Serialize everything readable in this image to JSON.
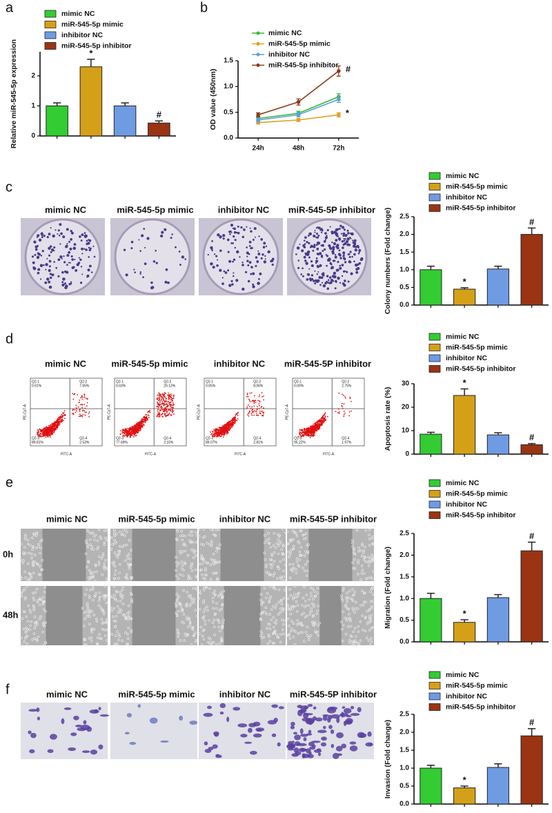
{
  "chart_data": [
    {
      "type": "bar",
      "panel_label": "a",
      "ylabel": "Relative miR-545-5p expression",
      "ylim": [
        0,
        2.8
      ],
      "yticks": [
        0,
        1,
        2
      ],
      "series": [
        {
          "name": "mimic NC",
          "color": "#33cc33",
          "values": [
            1.0
          ],
          "errors": [
            0.1
          ]
        },
        {
          "name": "miR-545-5p mimic",
          "color": "#d4a017",
          "values": [
            2.3
          ],
          "errors": [
            0.25
          ],
          "annotation": "*"
        },
        {
          "name": "inhibitor NC",
          "color": "#6f9be3",
          "values": [
            1.0
          ],
          "errors": [
            0.1
          ]
        },
        {
          "name": "miR-545-5p inhibitor",
          "color": "#9a3412",
          "values": [
            0.43
          ],
          "errors": [
            0.07
          ],
          "annotation": "#"
        }
      ]
    },
    {
      "type": "line",
      "panel_label": "b",
      "ylabel": "OD value (450nm)",
      "categories": [
        "24h",
        "48h",
        "72h"
      ],
      "ylim": [
        0,
        1.5
      ],
      "yticks": [
        {
          "value": 0,
          "label": "0.0"
        },
        0.5,
        {
          "value": 1,
          "label": "1.0"
        },
        1.5
      ],
      "series": [
        {
          "name": "mimic NC",
          "color": "#33bb33",
          "values": [
            0.38,
            0.48,
            0.8
          ],
          "errors": [
            0.04,
            0.04,
            0.06
          ]
        },
        {
          "name": "miR-545-5p mimic",
          "color": "#e0a020",
          "values": [
            0.3,
            0.35,
            0.45
          ],
          "errors": [
            0.03,
            0.03,
            0.04
          ],
          "annotation": "*"
        },
        {
          "name": "inhibitor NC",
          "color": "#5aa0e0",
          "values": [
            0.35,
            0.45,
            0.75
          ],
          "errors": [
            0.04,
            0.04,
            0.06
          ]
        },
        {
          "name": "miR-545-5p inhibitor",
          "color": "#8b3a1a",
          "values": [
            0.45,
            0.7,
            1.3
          ],
          "errors": [
            0.04,
            0.06,
            0.1
          ],
          "annotation": "#"
        }
      ]
    },
    {
      "type": "bar",
      "panel_label": "c",
      "ylabel": "Colony numbers (Fold change)",
      "ylim": [
        0,
        2.5
      ],
      "yticks": [
        {
          "value": 0,
          "label": "0.0"
        },
        0.5,
        {
          "value": 1,
          "label": "1.0"
        },
        1.5,
        {
          "value": 2,
          "label": "2.0"
        },
        2.5
      ],
      "series": [
        {
          "name": "mimic NC",
          "color": "#33cc33",
          "values": [
            1.0
          ],
          "errors": [
            0.1
          ]
        },
        {
          "name": "miR-545-5p mimic",
          "color": "#d4a017",
          "values": [
            0.45
          ],
          "errors": [
            0.04
          ],
          "annotation": "*"
        },
        {
          "name": "inhibitor NC",
          "color": "#6f9be3",
          "values": [
            1.02
          ],
          "errors": [
            0.08
          ]
        },
        {
          "name": "miR-545-5p inhibitor",
          "color": "#9a3412",
          "values": [
            2.0
          ],
          "errors": [
            0.18
          ],
          "annotation": "#"
        }
      ]
    },
    {
      "type": "bar",
      "panel_label": "d",
      "ylabel": "Apoptosis rate (%)",
      "ylim": [
        0,
        30
      ],
      "yticks": [
        0,
        10,
        20,
        30
      ],
      "series": [
        {
          "name": "mimic NC",
          "color": "#33cc33",
          "values": [
            8.5
          ],
          "errors": [
            0.8
          ]
        },
        {
          "name": "miR-545-5p mimic",
          "color": "#d4a017",
          "values": [
            25
          ],
          "errors": [
            2.8
          ],
          "annotation": "*"
        },
        {
          "name": "inhibitor NC",
          "color": "#6f9be3",
          "values": [
            8.2
          ],
          "errors": [
            0.9
          ]
        },
        {
          "name": "miR-545-5p inhibitor",
          "color": "#9a3412",
          "values": [
            4
          ],
          "errors": [
            0.5
          ],
          "annotation": "#"
        }
      ]
    },
    {
      "type": "bar",
      "panel_label": "e",
      "ylabel": "Migration (Fold change)",
      "ylim": [
        0,
        2.5
      ],
      "yticks": [
        {
          "value": 0,
          "label": "0.0"
        },
        0.5,
        {
          "value": 1,
          "label": "1.0"
        },
        1.5,
        {
          "value": 2,
          "label": "2.0"
        },
        2.5
      ],
      "series": [
        {
          "name": "mimic NC",
          "color": "#33cc33",
          "values": [
            1.0
          ],
          "errors": [
            0.12
          ]
        },
        {
          "name": "miR-545-5p mimic",
          "color": "#d4a017",
          "values": [
            0.45
          ],
          "errors": [
            0.06
          ],
          "annotation": "*"
        },
        {
          "name": "inhibitor NC",
          "color": "#6f9be3",
          "values": [
            1.02
          ],
          "errors": [
            0.07
          ]
        },
        {
          "name": "miR-545-5p inhibitor",
          "color": "#9a3412",
          "values": [
            2.1
          ],
          "errors": [
            0.2
          ],
          "annotation": "#"
        }
      ]
    },
    {
      "type": "bar",
      "panel_label": "f",
      "ylabel": "Invasion (Fold change)",
      "ylim": [
        0,
        2.5
      ],
      "yticks": [
        {
          "value": 0,
          "label": "0.0"
        },
        0.5,
        {
          "value": 1,
          "label": "1.0"
        },
        1.5,
        {
          "value": 2,
          "label": "2.0"
        },
        2.5
      ],
      "series": [
        {
          "name": "mimic NC",
          "color": "#33cc33",
          "values": [
            1.0
          ],
          "errors": [
            0.08
          ]
        },
        {
          "name": "miR-545-5p mimic",
          "color": "#d4a017",
          "values": [
            0.45
          ],
          "errors": [
            0.05
          ],
          "annotation": "*"
        },
        {
          "name": "inhibitor NC",
          "color": "#6f9be3",
          "values": [
            1.02
          ],
          "errors": [
            0.1
          ]
        },
        {
          "name": "miR-545-5p inhibitor",
          "color": "#9a3412",
          "values": [
            1.9
          ],
          "errors": [
            0.2
          ],
          "annotation": "#"
        }
      ]
    }
  ],
  "photo_panels": [
    {
      "style": "colony",
      "titles": [
        "mimic NC",
        "miR-545-5p mimic",
        "inhibitor NC",
        "miR-545-5P inhibitor"
      ]
    },
    {
      "style": "flow",
      "titles": [
        "mimic NC",
        "miR-545-5p mimic",
        "inhibitor NC",
        "miR-545-5P inhibitor"
      ]
    },
    {
      "style": "wound",
      "titles": [
        "mimic NC",
        "miR-545-5p mimic",
        "inhibitor NC",
        "miR-545-5P inhibitor"
      ],
      "row_labels": [
        "0h",
        "48h"
      ]
    },
    {
      "style": "invasion",
      "titles": [
        "mimic NC",
        "miR-545-5p mimic",
        "inhibitor NC",
        "miR-545-5P inhibitor"
      ]
    }
  ],
  "flow_axes": {
    "y": "PE-Cy7-A",
    "x": "FITC-A"
  },
  "flow_plots": [
    [
      [
        "Q2-1",
        "0.01%"
      ],
      [
        "Q2-2",
        "7.65%"
      ],
      [
        "Q2-3",
        "89.81%"
      ],
      [
        "Q2-4",
        "2.53%"
      ]
    ],
    [
      [
        "Q2-1",
        "0.03%"
      ],
      [
        "Q2-2",
        "20.13%"
      ],
      [
        "Q2-3",
        "77.69%"
      ],
      [
        "Q2-4",
        "2.15%"
      ]
    ],
    [
      [
        "Q2-1",
        "0.05%"
      ],
      [
        "Q2-2",
        "8.06%"
      ],
      [
        "Q2-3",
        "89.07%"
      ],
      [
        "Q2-4",
        "2.81%"
      ]
    ],
    [
      [
        "Q2-1",
        "0.00%"
      ],
      [
        "Q2-2",
        "2.75%"
      ],
      [
        "Q2-3",
        "95.22%"
      ],
      [
        "Q2-4",
        "1.97%"
      ]
    ]
  ]
}
